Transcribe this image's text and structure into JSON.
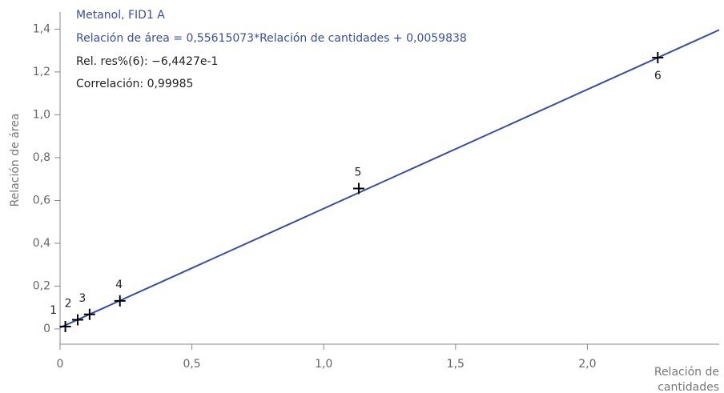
{
  "chart_data": {
    "type": "scatter",
    "title": "Metanol, FID1 A",
    "annotations": [
      "Relación de área = 0,55615073*Relación de cantidades + 0,0059838",
      "Rel. res%(6): −6,4427e-1",
      "Correlación: 0,99985"
    ],
    "ylabel": "Relación de área",
    "xlabel": [
      "Relación de",
      "cantidades"
    ],
    "x": [
      0.02,
      0.067,
      0.112,
      0.227,
      1.133,
      2.267
    ],
    "values": [
      0.011,
      0.043,
      0.068,
      0.131,
      0.656,
      1.267
    ],
    "labels": [
      "1",
      "2",
      "3",
      "4",
      "5",
      "6"
    ],
    "color": "#000000",
    "fit": {
      "x": [
        0,
        2.5
      ],
      "y": [
        0.0059838,
        1.3963606
      ],
      "color": "#3a4fa0"
    },
    "xlim": [
      0,
      2.5
    ],
    "ylim": [
      -0.06,
      1.48
    ],
    "xticks": [
      0,
      {
        "value": 0.5,
        "label": "0,5"
      },
      {
        "value": 1.0,
        "label": "1,0"
      },
      {
        "value": 1.5,
        "label": "1,5"
      },
      {
        "value": 2.0,
        "label": "2,0"
      }
    ],
    "yticks": [
      0,
      {
        "value": 0.2,
        "label": "0,2"
      },
      {
        "value": 0.4,
        "label": "0,4"
      },
      {
        "value": 0.6,
        "label": "0,6"
      },
      {
        "value": 0.8,
        "label": "0,8"
      },
      {
        "value": 1.0,
        "label": "1,0"
      },
      {
        "value": 1.2,
        "label": "1,2"
      },
      {
        "value": 1.4,
        "label": "1,4"
      }
    ]
  }
}
